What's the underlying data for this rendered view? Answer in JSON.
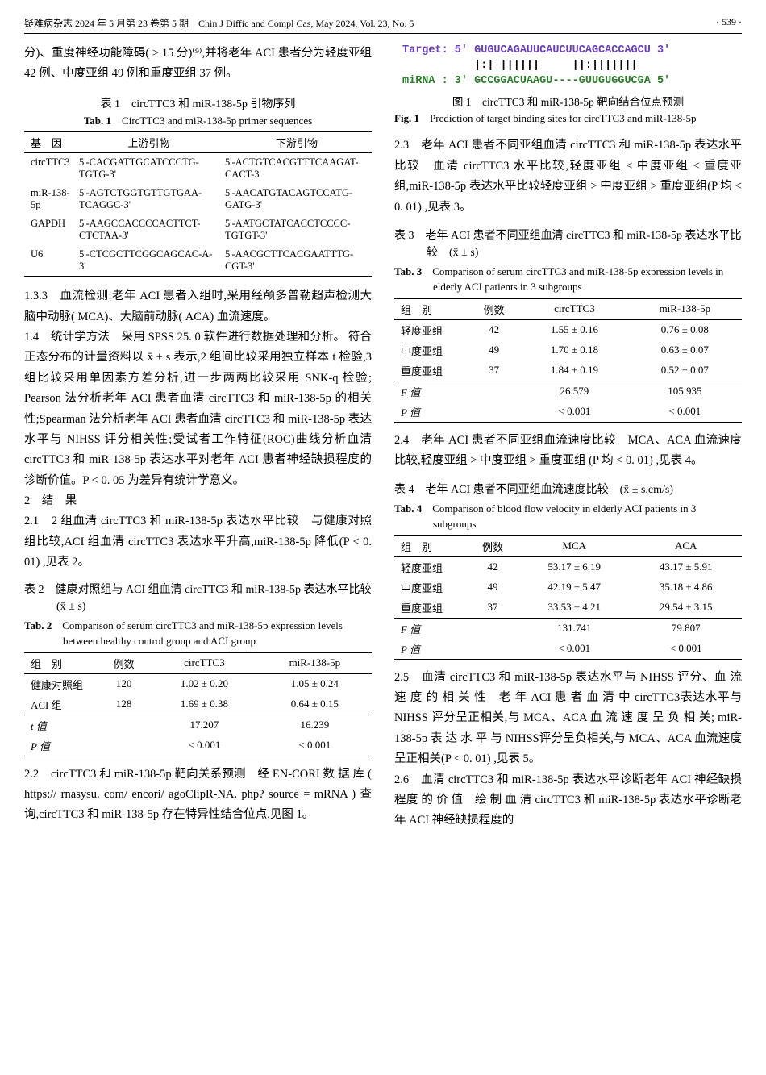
{
  "header": {
    "left": "疑难病杂志 2024 年 5 月第 23 卷第 5 期　Chin J Diffic and Compl Cas, May 2024, Vol. 23, No. 5",
    "right": "· 539 ·"
  },
  "leftcol": {
    "intro": "分)、重度神经功能障碍( > 15 分)⁽⁹⁾,并将老年 ACI 患者分为轻度亚组 42 例、中度亚组 49 例和重度亚组 37 例。",
    "tab1_cn": "表 1　circTTC3 和 miR-138-5p 引物序列",
    "tab1_en_b": "Tab. 1",
    "tab1_en": "　CircTTC3 and miR-138-5p primer sequences",
    "tab1_head": [
      "基　因",
      "上游引物",
      "下游引物"
    ],
    "tab1_rows": [
      [
        "circTTC3",
        "5'-CACGATTGCATCCCTG-TGTG-3'",
        "5'-ACTGTCACGTTTCAAGAT-CACT-3'"
      ],
      [
        "miR-138-5p",
        "5'-AGTCTGGTGTTGTGAA-TCAGGC-3'",
        "5'-AACATGTACAGTCCATG-GATG-3'"
      ],
      [
        "GAPDH",
        "5'-AAGCCACCCCACTTCT-CTCTAA-3'",
        "5'-AATGCTATCACCTCCCC-TGTGT-3'"
      ],
      [
        "U6",
        "5'-CTCGCTTCGGCAGCAC-A-3'",
        "5'-AACGCTTCACGAATTTG-CGT-3'"
      ]
    ],
    "p133": "1.3.3　血流检测:老年 ACI 患者入组时,采用经颅多普勒超声检测大脑中动脉( MCA)、大脑前动脉( ACA) 血流速度。",
    "p14": "1.4　统计学方法　采用 SPSS 25. 0 软件进行数据处理和分析。 符合正态分布的计量资料以 x̄ ± s 表示,2 组间比较采用独立样本 t 检验,3 组比较采用单因素方差分析,进一步两两比较采用 SNK-q 检验; Pearson 法分析老年 ACI 患者血清 circTTC3 和 miR-138-5p 的相关性;Spearman 法分析老年 ACI 患者血清 circTTC3 和 miR-138-5p 表达水平与 NIHSS 评分相关性;受试者工作特征(ROC)曲线分析血清 circTTC3 和 miR-138-5p 表达水平对老年 ACI 患者神经缺损程度的诊断价值。P < 0. 05 为差异有统计学意义。",
    "s2": "2　结　果",
    "p21": "2.1　2 组血清 circTTC3 和 miR-138-5p 表达水平比较　与健康对照组比较,ACI 组血清 circTTC3 表达水平升高,miR-138-5p 降低(P < 0. 01) ,见表 2。",
    "tab2_cn": "表 2　健康对照组与 ACI 组血清 circTTC3 和 miR-138-5p 表达水平比较　(x̄ ± s)",
    "tab2_en_b": "Tab. 2",
    "tab2_en": "　Comparison of serum circTTC3 and miR-138-5p expression levels between healthy control group and ACI group",
    "tab2_head": [
      "组　别",
      "例数",
      "circTTC3",
      "miR-138-5p"
    ],
    "tab2_rows": [
      [
        "健康对照组",
        "120",
        "1.02 ± 0.20",
        "1.05 ± 0.24"
      ],
      [
        "ACI 组",
        "128",
        "1.69 ± 0.38",
        "0.64 ± 0.15"
      ],
      [
        "t 值",
        "",
        "17.207",
        "16.239"
      ],
      [
        "P 值",
        "",
        "< 0.001",
        "< 0.001"
      ]
    ],
    "p22": "2.2　circTTC3 和 miR-138-5p 靶向关系预测　经 EN-CORI 数 据 库 ( https:// rnasysu. com/ encori/ agoClipR-NA. php? source = mRNA ) 查询,circTTC3 和 miR-138-5p 存在特异性结合位点,见图 1。"
  },
  "rightcol": {
    "fig_target": "Target: 5' GUGUCAGAUUCAUCUUCAGCACCAGCU 3'",
    "fig_match": "           |:| ||||||     ||:|||||||",
    "fig_mirna": "miRNA : 3' GCCGGACUAAGU----GUUGUGGUCGA 5'",
    "fig1_cn": "图 1　circTTC3 和 miR-138-5p 靶向结合位点预测",
    "fig1_en_b": "Fig. 1",
    "fig1_en": "　Prediction of target binding sites for circTTC3 and miR-138-5p",
    "p23": "2.3　老年 ACI 患者不同亚组血清 circTTC3 和 miR-138-5p 表达水平比较　血清 circTTC3 水平比较,轻度亚组 < 中度亚组 < 重度亚组,miR-138-5p 表达水平比较轻度亚组 > 中度亚组 > 重度亚组(P 均 < 0. 01) ,见表 3。",
    "tab3_cn": "表 3　老年 ACI 患者不同亚组血清 circTTC3 和 miR-138-5p 表达水平比较　(x̄ ± s)",
    "tab3_en_b": "Tab. 3",
    "tab3_en": "　Comparison of serum circTTC3 and miR-138-5p expression levels in elderly ACI patients in 3 subgroups",
    "tab3_head": [
      "组　别",
      "例数",
      "circTTC3",
      "miR-138-5p"
    ],
    "tab3_rows": [
      [
        "轻度亚组",
        "42",
        "1.55 ± 0.16",
        "0.76 ± 0.08"
      ],
      [
        "中度亚组",
        "49",
        "1.70 ± 0.18",
        "0.63 ± 0.07"
      ],
      [
        "重度亚组",
        "37",
        "1.84 ± 0.19",
        "0.52 ± 0.07"
      ],
      [
        "F 值",
        "",
        "26.579",
        "105.935"
      ],
      [
        "P 值",
        "",
        "< 0.001",
        "< 0.001"
      ]
    ],
    "p24": "2.4　老年 ACI 患者不同亚组血流速度比较　MCA、ACA 血流速度比较,轻度亚组 > 中度亚组 > 重度亚组 (P 均 < 0. 01) ,见表 4。",
    "tab4_cn": "表 4　老年 ACI 患者不同亚组血流速度比较　(x̄ ± s,cm/s)",
    "tab4_en_b": "Tab. 4",
    "tab4_en": "　Comparison of blood flow velocity in elderly ACI patients in 3 subgroups",
    "tab4_head": [
      "组　别",
      "例数",
      "MCA",
      "ACA"
    ],
    "tab4_rows": [
      [
        "轻度亚组",
        "42",
        "53.17 ± 6.19",
        "43.17 ± 5.91"
      ],
      [
        "中度亚组",
        "49",
        "42.19 ± 5.47",
        "35.18 ± 4.86"
      ],
      [
        "重度亚组",
        "37",
        "33.53 ± 4.21",
        "29.54 ± 3.15"
      ],
      [
        "F 值",
        "",
        "131.741",
        "79.807"
      ],
      [
        "P 值",
        "",
        "< 0.001",
        "< 0.001"
      ]
    ],
    "p25": "2.5　血清 circTTC3 和 miR-138-5p 表达水平与 NIHSS 评分、血 流 速 度 的 相 关 性　老 年 ACI 患 者 血 清 中 circTTC3表达水平与 NIHSS 评分呈正相关,与 MCA、ACA 血 流 速 度 呈 负 相 关; miR-138-5p 表 达 水 平 与 NIHSS评分呈负相关,与 MCA、ACA 血流速度呈正相关(P < 0. 01) ,见表 5。",
    "p26": "2.6　血清 circTTC3 和 miR-138-5p 表达水平诊断老年 ACI 神经缺损程度 的 价 值　绘 制 血 清 circTTC3 和 miR-138-5p 表达水平诊断老年 ACI 神经缺损程度的"
  }
}
